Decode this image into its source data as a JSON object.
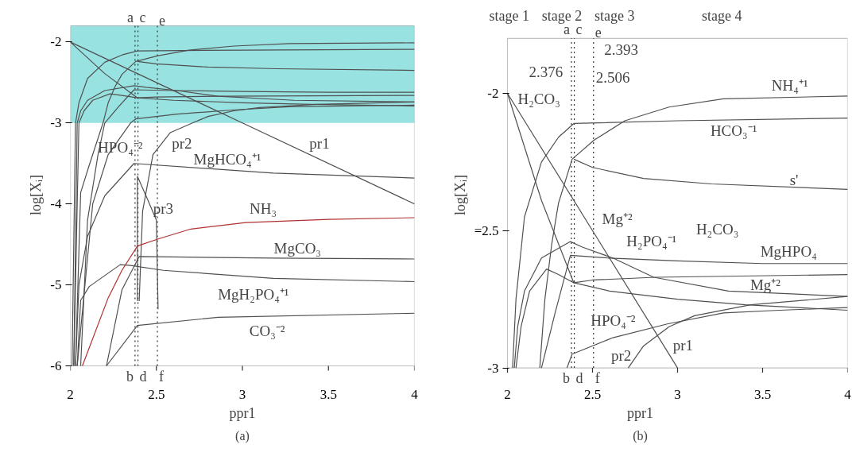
{
  "chart_data": [
    {
      "type": "line",
      "title": "(a)",
      "xlabel": "ppr1",
      "ylabel": "log[Xᵢ]",
      "xlim": [
        2,
        4
      ],
      "ylim": [
        -6,
        -1.8
      ],
      "xticks": [
        2,
        2.5,
        3,
        3.5,
        4
      ],
      "yticks": [
        -6,
        -5,
        -4,
        -3,
        -2
      ],
      "bands": [
        {
          "axis": "y",
          "from": -3,
          "to": -1.8,
          "color": "#99e2e2"
        }
      ],
      "ref_lines": [
        {
          "axis": "x",
          "value": 2.376,
          "label": "a",
          "line_style": "dotted"
        },
        {
          "axis": "x",
          "value": 2.393,
          "label": "c",
          "line_style": "dotted"
        },
        {
          "axis": "x",
          "value": 2.506,
          "label": "e",
          "line_style": "dotted"
        }
      ],
      "series": [
        {
          "color": "#505050",
          "x": [
            2.03,
            2.06,
            2.11,
            2.19,
            2.22,
            2.26,
            2.3,
            2.38,
            2.51,
            2.69,
            2.95,
            3.27,
            4
          ],
          "values": [
            -6,
            -3.86,
            -3.52,
            -3,
            -2.75,
            -2.55,
            -2.4,
            -2.24,
            -2.17,
            -2.1,
            -2.05,
            -2.02,
            -2.01
          ]
        },
        {
          "color": "#505050",
          "x": [
            2.01,
            2.03,
            2.05,
            2.1,
            2.2,
            2.3,
            2.39,
            3,
            4
          ],
          "values": [
            -6,
            -3,
            -2.75,
            -2.45,
            -2.25,
            -2.16,
            -2.11,
            -2.1,
            -2.09
          ]
        },
        {
          "color": "#505050",
          "x": [
            2.39,
            2.5,
            2.8,
            3.2,
            4
          ],
          "values": [
            -2.24,
            -2.27,
            -2.31,
            -2.33,
            -2.35
          ]
        },
        {
          "color": "#505050",
          "x": [
            2,
            2.2,
            2.39,
            2.6,
            3,
            3.4,
            4
          ],
          "values": [
            -2,
            -2.39,
            -2.69,
            -2.72,
            -2.75,
            -2.77,
            -2.79
          ]
        },
        {
          "color": "#505050",
          "x": [
            2.02,
            2.04,
            2.06,
            2.1,
            2.2,
            2.37,
            2.44,
            2.62,
            2.86,
            3.3,
            4
          ],
          "values": [
            -6,
            -3,
            -2.85,
            -2.72,
            -2.6,
            -2.54,
            -2.56,
            -2.6,
            -2.67,
            -2.72,
            -2.74
          ]
        },
        {
          "color": "#505050",
          "x": [
            2.02,
            2.05,
            2.08,
            2.13,
            2.23,
            2.3,
            2.39,
            2.5,
            2.87,
            4
          ],
          "values": [
            -6,
            -3,
            -2.85,
            -2.72,
            -2.64,
            -2.66,
            -2.69,
            -2.68,
            -2.67,
            -2.66
          ]
        },
        {
          "color": "#505050",
          "x": [
            2.06,
            2.1,
            2.16,
            2.2,
            2.28,
            2.37,
            2.6,
            3,
            3.5,
            4
          ],
          "values": [
            -6,
            -4.2,
            -3.4,
            -3,
            -2.8,
            -2.59,
            -2.6,
            -2.61,
            -2.62,
            -2.62
          ]
        },
        {
          "color": "#505050",
          "x": [
            2.04,
            2.13,
            2.22,
            2.35,
            2.38,
            2.62,
            2.94,
            3.27,
            3.6,
            4
          ],
          "values": [
            -6,
            -4,
            -3.39,
            -3,
            -2.95,
            -2.89,
            -2.84,
            -2.8,
            -2.79,
            -2.78
          ]
        },
        {
          "color": "#505050",
          "x": [
            2,
            2.5,
            3,
            4
          ],
          "values": [
            -2,
            -2.5,
            -3,
            -4
          ]
        },
        {
          "color": "#505050",
          "x": [
            2.4,
            2.42,
            2.48,
            2.58,
            2.71,
            2.8,
            2.95,
            3.1,
            3.43,
            4
          ],
          "values": [
            -5.2,
            -4.09,
            -3.39,
            -3.12,
            -3,
            -2.92,
            -2.85,
            -2.81,
            -2.77,
            -2.74
          ]
        },
        {
          "color": "#505050",
          "x": [
            2.39,
            2.39,
            2.45,
            2.5,
            2.51
          ],
          "values": [
            -5.2,
            -3.66,
            -3.95,
            -4.2,
            -5.3
          ]
        },
        {
          "color": "#505050",
          "x": [
            2.03,
            2.05,
            2.1,
            2.2,
            2.37,
            3.18,
            4
          ],
          "values": [
            -6,
            -5,
            -4.4,
            -3.9,
            -3.5,
            -3.62,
            -3.68
          ]
        },
        {
          "color": "#b03030",
          "x": [
            2.07,
            2.22,
            2.3,
            2.39,
            2.5,
            2.7,
            3.02,
            3.5,
            4
          ],
          "values": [
            -6,
            -5.16,
            -4.82,
            -4.52,
            -4.44,
            -4.31,
            -4.23,
            -4.19,
            -4.17
          ]
        },
        {
          "color": "#505050",
          "x": [
            2.21,
            2.3,
            2.4,
            3.18,
            4
          ],
          "values": [
            -6,
            -5.06,
            -4.65,
            -4.67,
            -4.68
          ]
        },
        {
          "color": "#505050",
          "x": [
            2.04,
            2.06,
            2.11,
            2.29,
            2.35,
            2.54,
            3.18,
            4
          ],
          "values": [
            -6,
            -5.19,
            -5.02,
            -4.75,
            -4.76,
            -4.82,
            -4.92,
            -4.96
          ]
        },
        {
          "color": "#505050",
          "x": [
            2.21,
            2.39,
            2.86,
            4
          ],
          "values": [
            -6,
            -5.5,
            -5.4,
            -5.35
          ]
        }
      ],
      "annotations": [
        "HPO₄⁻²",
        "pr2",
        "pr1",
        "MgHCO₄⁺¹",
        "pr3",
        "NH₃",
        "MgCO₃",
        "MgH₂PO₄⁺¹",
        "CO₃⁻²",
        "b",
        "d",
        "f"
      ]
    },
    {
      "type": "line",
      "title": "(b)",
      "xlabel": "ppr1",
      "ylabel": "log[Xᵢ]",
      "xlim": [
        2,
        4
      ],
      "ylim": [
        -3,
        -1.8
      ],
      "xticks": [
        2,
        2.5,
        3,
        3.5,
        4
      ],
      "yticks": [
        -3,
        {
          "value": -2.5,
          "label": "=2.5"
        },
        -2
      ],
      "ref_lines": [
        {
          "axis": "x",
          "value": 2.376,
          "label": "a",
          "line_style": "dotted"
        },
        {
          "axis": "x",
          "value": 2.393,
          "label": "c",
          "line_style": "dotted"
        },
        {
          "axis": "x",
          "value": 2.506,
          "label": "e",
          "line_style": "dotted"
        }
      ],
      "series": [
        {
          "color": "#505050",
          "x": [
            2.19,
            2.22,
            2.26,
            2.3,
            2.38,
            2.51,
            2.69,
            2.95,
            3.27,
            4
          ],
          "values": [
            -3,
            -2.75,
            -2.55,
            -2.4,
            -2.24,
            -2.17,
            -2.1,
            -2.05,
            -2.02,
            -2.01
          ]
        },
        {
          "color": "#505050",
          "x": [
            2.03,
            2.05,
            2.1,
            2.2,
            2.3,
            2.39,
            3,
            4
          ],
          "values": [
            -3,
            -2.75,
            -2.45,
            -2.25,
            -2.16,
            -2.11,
            -2.1,
            -2.09
          ]
        },
        {
          "color": "#505050",
          "x": [
            2.39,
            2.5,
            2.8,
            3.2,
            4
          ],
          "values": [
            -2.24,
            -2.27,
            -2.31,
            -2.33,
            -2.35
          ]
        },
        {
          "color": "#505050",
          "x": [
            2,
            2.2,
            2.39,
            2.6,
            3,
            3.4,
            4
          ],
          "values": [
            -2,
            -2.39,
            -2.69,
            -2.72,
            -2.75,
            -2.77,
            -2.79
          ]
        },
        {
          "color": "#505050",
          "x": [
            2.04,
            2.06,
            2.1,
            2.2,
            2.37,
            2.44,
            2.62,
            2.86,
            3.3,
            4
          ],
          "values": [
            -3,
            -2.85,
            -2.72,
            -2.6,
            -2.54,
            -2.56,
            -2.6,
            -2.67,
            -2.72,
            -2.74
          ]
        },
        {
          "color": "#505050",
          "x": [
            2.05,
            2.08,
            2.13,
            2.23,
            2.3,
            2.39,
            2.5,
            2.87,
            4
          ],
          "values": [
            -3,
            -2.85,
            -2.72,
            -2.64,
            -2.66,
            -2.69,
            -2.68,
            -2.67,
            -2.66
          ]
        },
        {
          "color": "#505050",
          "x": [
            2.2,
            2.28,
            2.37,
            2.6,
            3,
            3.5,
            4
          ],
          "values": [
            -3,
            -2.8,
            -2.59,
            -2.6,
            -2.61,
            -2.62,
            -2.62
          ]
        },
        {
          "color": "#505050",
          "x": [
            2.35,
            2.38,
            2.62,
            2.94,
            3.27,
            3.6,
            4
          ],
          "values": [
            -3,
            -2.95,
            -2.89,
            -2.84,
            -2.8,
            -2.79,
            -2.78
          ]
        },
        {
          "color": "#505050",
          "x": [
            2,
            2.5,
            3
          ],
          "values": [
            -2,
            -2.5,
            -3
          ]
        },
        {
          "color": "#505050",
          "x": [
            2.71,
            2.8,
            2.95,
            3.1,
            3.43,
            4
          ],
          "values": [
            -3,
            -2.92,
            -2.85,
            -2.81,
            -2.77,
            -2.74
          ]
        }
      ],
      "annotations": [
        "stage 1",
        "stage 2",
        "stage 3",
        "stage 4",
        "2.376",
        "2.393",
        "2.506",
        "NH₄⁺¹",
        "H₂CO₃",
        "HCO₃⁻¹",
        "s'",
        "Mg⁺²",
        "H₂PO₄⁻¹",
        "H₂CO₃",
        "MgHPO₄",
        "Mg⁺²",
        "HPO₄⁻²",
        "pr2",
        "pr1",
        "b",
        "d",
        "f"
      ]
    }
  ]
}
